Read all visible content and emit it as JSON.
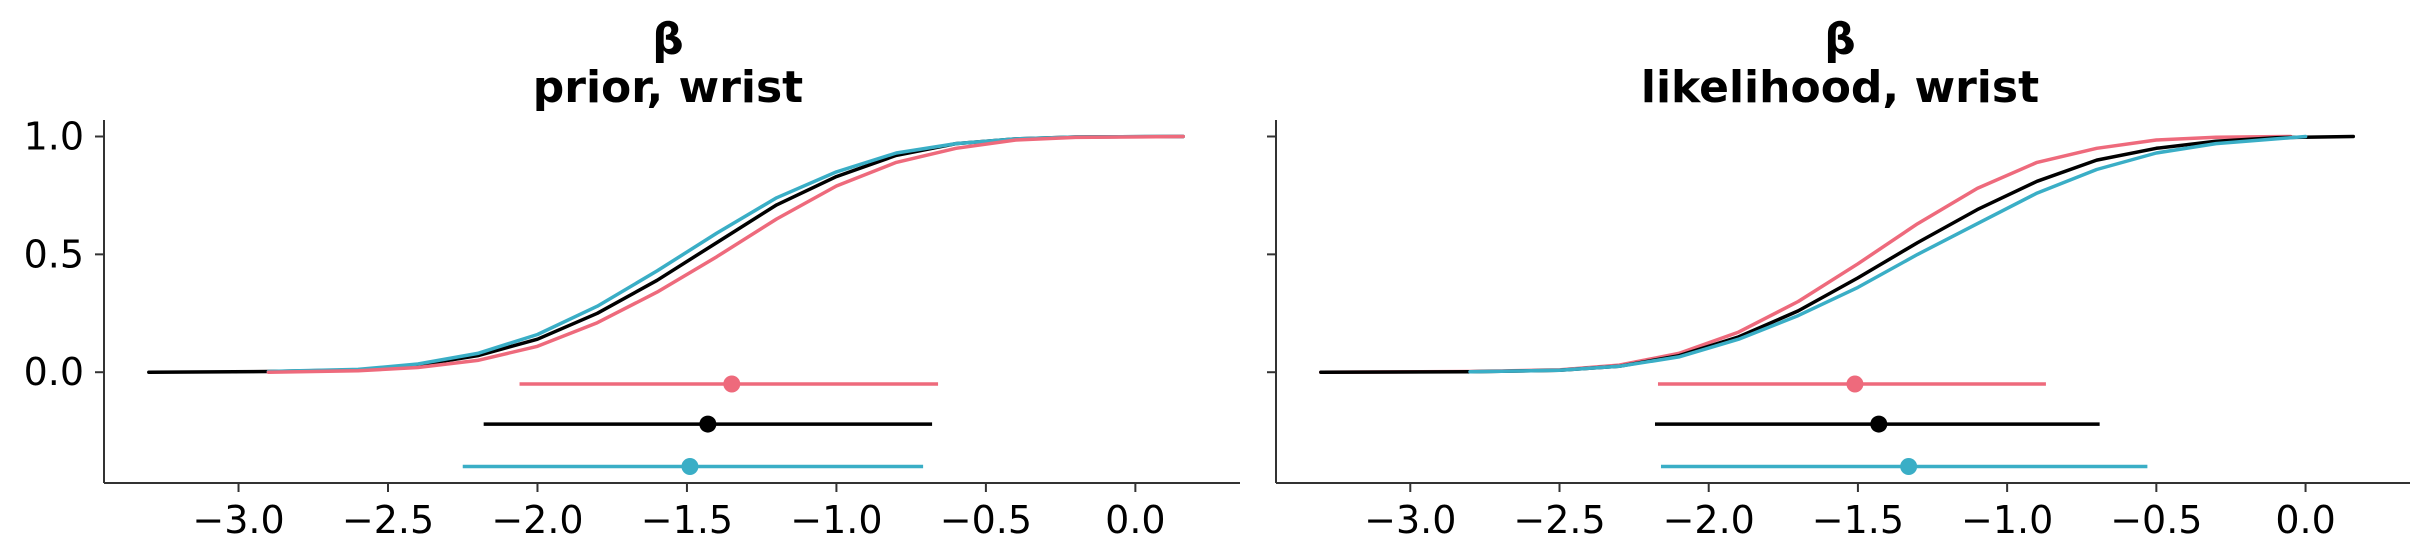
{
  "chart_data": [
    {
      "type": "line",
      "title": "β",
      "subtitle": "prior, wrist",
      "xlim": [
        -3.45,
        0.35
      ],
      "ylim": [
        -0.47,
        1.07
      ],
      "xticks": [
        -3.0,
        -2.5,
        -2.0,
        -1.5,
        -1.0,
        -0.5,
        0.0
      ],
      "xtick_labels": [
        "−3.0",
        "−2.5",
        "−2.0",
        "−1.5",
        "−1.0",
        "−0.5",
        "0.0"
      ],
      "yticks": [
        0.0,
        0.5,
        1.0
      ],
      "ytick_labels": [
        "0.0",
        "0.5",
        "1.0"
      ],
      "grid": false,
      "series": [
        {
          "color": "#000000",
          "x": [
            -3.3,
            -2.9,
            -2.6,
            -2.4,
            -2.2,
            -2.0,
            -1.8,
            -1.6,
            -1.4,
            -1.2,
            -1.0,
            -0.8,
            -0.6,
            -0.4,
            -0.2,
            0.16
          ],
          "y": [
            0,
            0.003,
            0.01,
            0.03,
            0.07,
            0.14,
            0.25,
            0.39,
            0.55,
            0.71,
            0.83,
            0.92,
            0.97,
            0.99,
            0.998,
            1.0
          ]
        },
        {
          "color": "#3aaec6",
          "x": [
            -2.9,
            -2.6,
            -2.4,
            -2.2,
            -2.0,
            -1.8,
            -1.6,
            -1.4,
            -1.2,
            -1.0,
            -0.8,
            -0.6,
            -0.4,
            -0.2,
            0.16
          ],
          "y": [
            0.003,
            0.012,
            0.035,
            0.08,
            0.16,
            0.28,
            0.43,
            0.59,
            0.74,
            0.85,
            0.93,
            0.97,
            0.99,
            0.998,
            1.0
          ]
        },
        {
          "color": "#ee6a7c",
          "x": [
            -2.9,
            -2.6,
            -2.4,
            -2.2,
            -2.0,
            -1.8,
            -1.6,
            -1.4,
            -1.2,
            -1.0,
            -0.8,
            -0.6,
            -0.4,
            -0.2,
            0.16
          ],
          "y": [
            0,
            0.006,
            0.02,
            0.05,
            0.11,
            0.21,
            0.34,
            0.49,
            0.65,
            0.79,
            0.89,
            0.95,
            0.985,
            0.996,
            1.0
          ]
        }
      ],
      "intervals": [
        {
          "color": "#ee6a7c",
          "low": -2.06,
          "high": -0.66,
          "point": -1.35,
          "y": -0.05
        },
        {
          "color": "#000000",
          "low": -2.18,
          "high": -0.68,
          "point": -1.43,
          "y": -0.22
        },
        {
          "color": "#3aaec6",
          "low": -2.25,
          "high": -0.71,
          "point": -1.49,
          "y": -0.4
        }
      ]
    },
    {
      "type": "line",
      "title": "β",
      "subtitle": "likelihood, wrist",
      "xlim": [
        -3.45,
        0.35
      ],
      "ylim": [
        -0.47,
        1.07
      ],
      "xticks": [
        -3.0,
        -2.5,
        -2.0,
        -1.5,
        -1.0,
        -0.5,
        0.0
      ],
      "xtick_labels": [
        "−3.0",
        "−2.5",
        "−2.0",
        "−1.5",
        "−1.0",
        "−0.5",
        "0.0"
      ],
      "yticks": [
        0.0,
        0.5,
        1.0
      ],
      "grid": false,
      "series": [
        {
          "color": "#ee6a7c",
          "x": [
            -3.3,
            -2.8,
            -2.5,
            -2.3,
            -2.1,
            -1.9,
            -1.7,
            -1.5,
            -1.3,
            -1.1,
            -0.9,
            -0.7,
            -0.5,
            -0.3,
            -0.05
          ],
          "y": [
            0,
            0.003,
            0.01,
            0.03,
            0.08,
            0.17,
            0.3,
            0.46,
            0.63,
            0.78,
            0.89,
            0.95,
            0.985,
            0.997,
            1.0
          ]
        },
        {
          "color": "#000000",
          "x": [
            -3.3,
            -2.8,
            -2.5,
            -2.3,
            -2.1,
            -1.9,
            -1.7,
            -1.5,
            -1.3,
            -1.1,
            -0.9,
            -0.7,
            -0.5,
            -0.3,
            -0.1,
            0.16
          ],
          "y": [
            0,
            0.002,
            0.008,
            0.025,
            0.07,
            0.15,
            0.26,
            0.4,
            0.55,
            0.69,
            0.81,
            0.9,
            0.95,
            0.98,
            0.995,
            1.0
          ]
        },
        {
          "color": "#3aaec6",
          "x": [
            -2.8,
            -2.5,
            -2.3,
            -2.1,
            -1.9,
            -1.7,
            -1.5,
            -1.3,
            -1.1,
            -0.9,
            -0.7,
            -0.5,
            -0.3,
            -0.1,
            0.0
          ],
          "y": [
            0.002,
            0.008,
            0.025,
            0.065,
            0.14,
            0.24,
            0.36,
            0.5,
            0.63,
            0.76,
            0.86,
            0.93,
            0.97,
            0.99,
            1.0
          ]
        }
      ],
      "intervals": [
        {
          "color": "#ee6a7c",
          "low": -2.17,
          "high": -0.87,
          "point": -1.51,
          "y": -0.05
        },
        {
          "color": "#000000",
          "low": -2.18,
          "high": -0.69,
          "point": -1.43,
          "y": -0.22
        },
        {
          "color": "#3aaec6",
          "low": -2.16,
          "high": -0.53,
          "point": -1.33,
          "y": -0.4
        }
      ]
    }
  ]
}
